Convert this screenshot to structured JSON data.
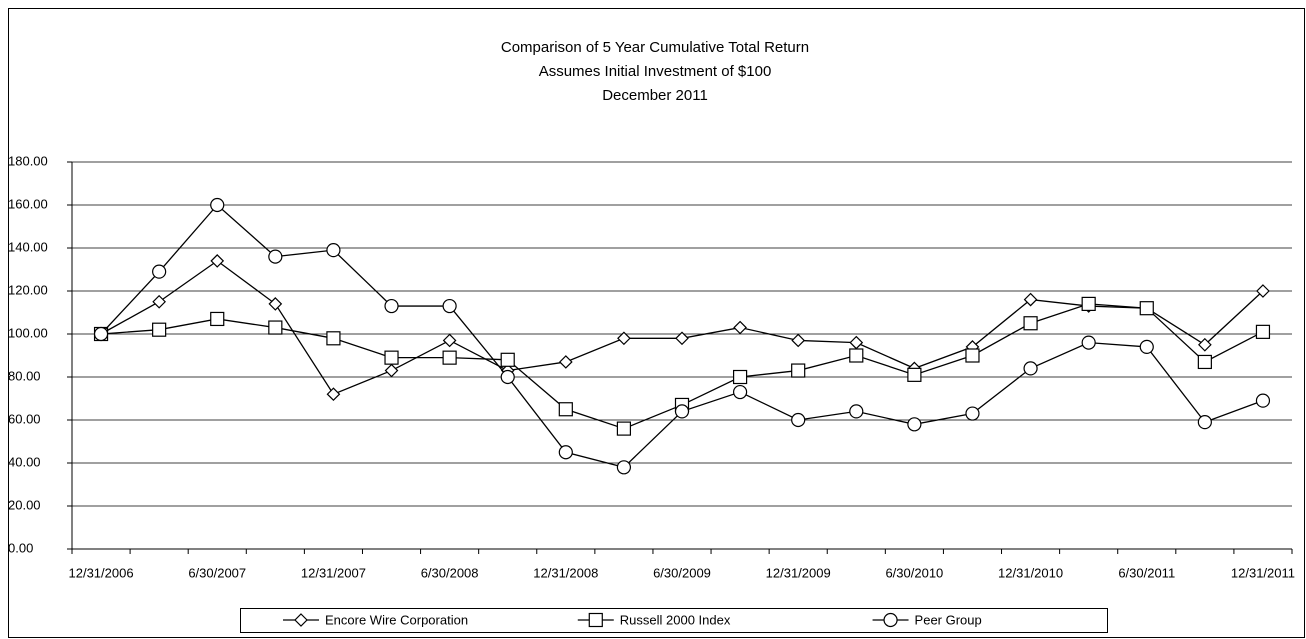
{
  "chart_data": {
    "type": "line",
    "title": [
      "Comparison of 5 Year Cumulative Total Return",
      "Assumes Initial Investment of $100",
      "December 2011"
    ],
    "categories": [
      "12/31/2006",
      null,
      "6/30/2007",
      null,
      "12/31/2007",
      null,
      "6/30/2008",
      null,
      "12/31/2008",
      null,
      "6/30/2009",
      null,
      "12/31/2009",
      null,
      "6/30/2010",
      null,
      "12/31/2010",
      null,
      "6/30/2011",
      null,
      "12/31/2011"
    ],
    "series": [
      {
        "name": "Encore Wire Corporation",
        "color": "#000000",
        "marker": "diamond",
        "values": [
          100,
          115,
          134,
          114,
          72,
          83,
          97,
          83,
          87,
          98,
          98,
          103,
          97,
          96,
          84,
          94,
          116,
          113,
          112,
          95,
          120
        ]
      },
      {
        "name": "Russell 2000 Index",
        "color": "#000000",
        "marker": "square",
        "values": [
          100,
          102,
          107,
          103,
          98,
          89,
          89,
          88,
          65,
          56,
          67,
          80,
          83,
          90,
          81,
          90,
          105,
          114,
          112,
          87,
          101
        ]
      },
      {
        "name": "Peer Group",
        "color": "#000000",
        "marker": "circle",
        "values": [
          100,
          129,
          160,
          136,
          139,
          113,
          113,
          80,
          45,
          38,
          64,
          73,
          60,
          64,
          58,
          63,
          84,
          96,
          94,
          59,
          69
        ]
      }
    ],
    "ylim": [
      0,
      180
    ],
    "yticks": [
      {
        "value": 0,
        "label": "0.00"
      },
      {
        "value": 20,
        "label": "20.00"
      },
      {
        "value": 40,
        "label": "40.00"
      },
      {
        "value": 60,
        "label": "60.00"
      },
      {
        "value": 80,
        "label": "80.00"
      },
      {
        "value": 100,
        "label": "100.00"
      },
      {
        "value": 120,
        "label": "120.00"
      },
      {
        "value": 140,
        "label": "140.00"
      },
      {
        "value": 160,
        "label": "160.00"
      },
      {
        "value": 180,
        "label": "180.00"
      }
    ],
    "grid": true,
    "legend": "bottom"
  }
}
